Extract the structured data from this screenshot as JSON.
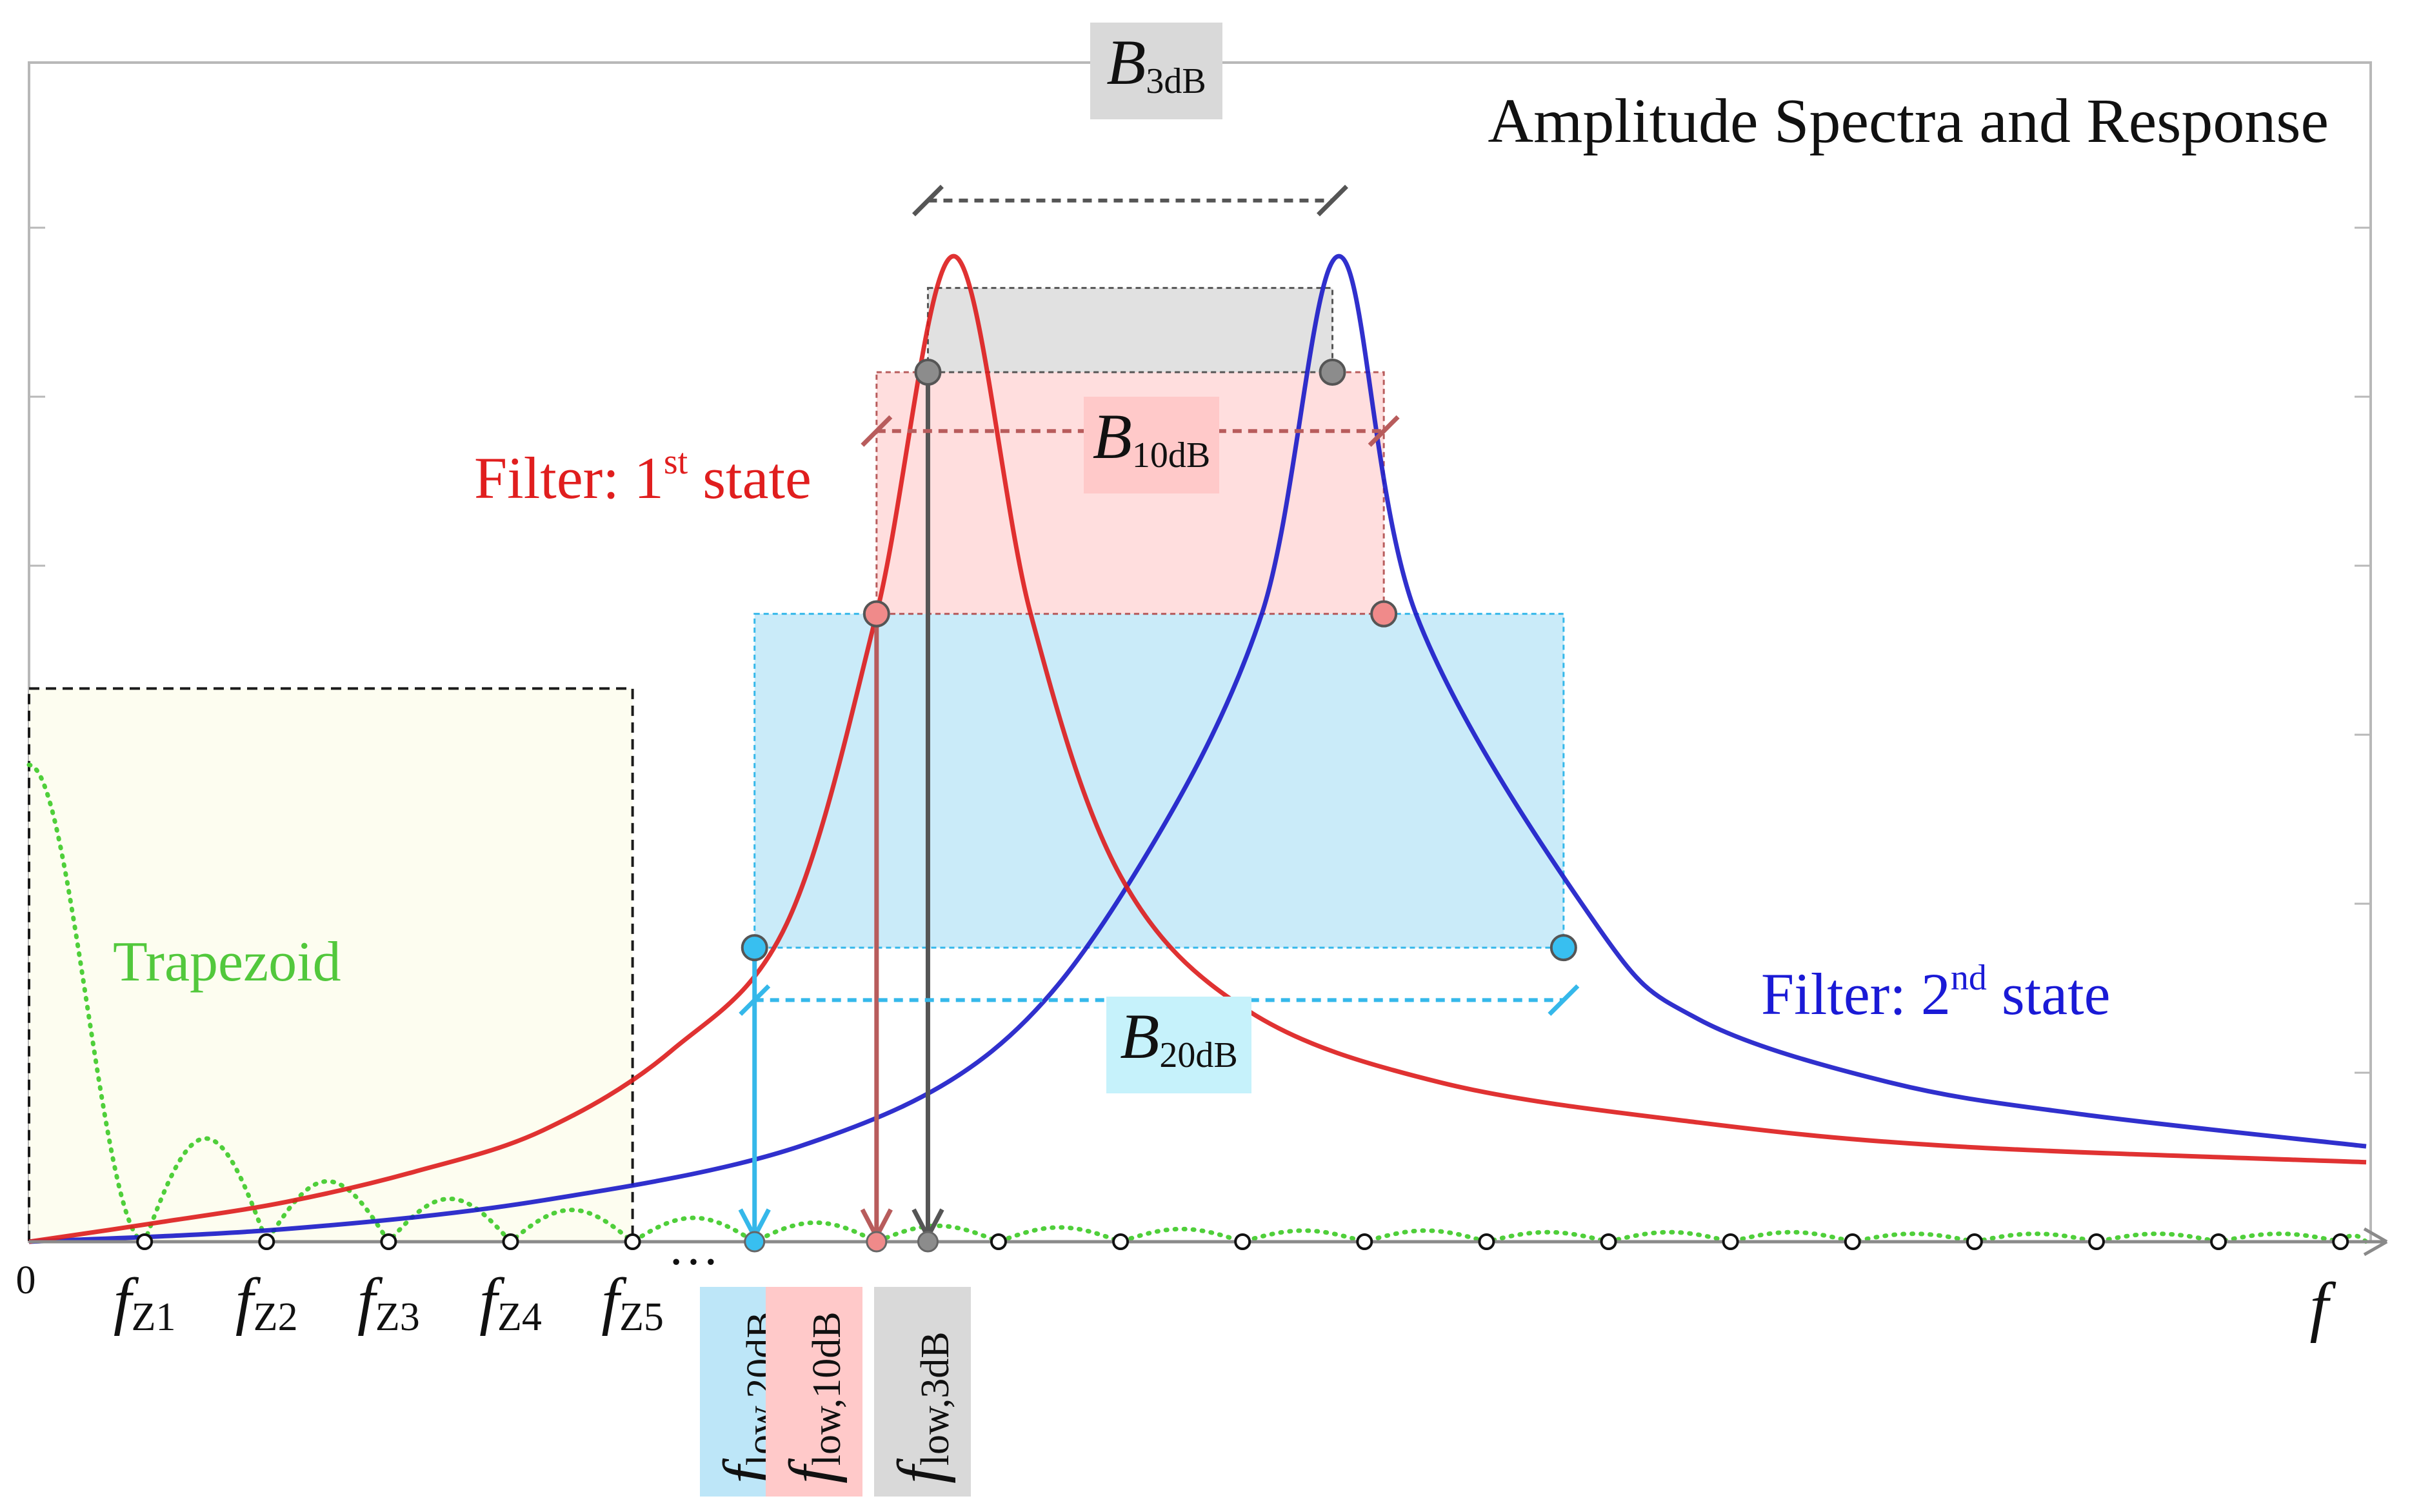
{
  "chart_data": {
    "type": "line",
    "title": "Amplitude Spectra and Response",
    "xlabel": "f",
    "ylabel": "",
    "origin_label": "0",
    "xlim": [
      0,
      18.2
    ],
    "ylim": [
      0,
      7.0
    ],
    "grid": false,
    "series": [
      {
        "name": "Filter: 1st state",
        "label_main": "Filter: 1",
        "label_sup": "st",
        "label_tail": " state",
        "color": "#dd1c1c",
        "center": 7.2,
        "peak": 6.2,
        "half_width": 0.66,
        "points": [
          [
            0,
            0
          ],
          [
            1,
            0.12
          ],
          [
            2,
            0.25
          ],
          [
            3,
            0.44
          ],
          [
            4,
            0.7
          ],
          [
            5,
            1.2
          ],
          [
            5.9,
            2.0
          ],
          [
            6.6,
            3.95
          ],
          [
            7.2,
            6.2
          ],
          [
            7.8,
            3.95
          ],
          [
            8.5,
            2.3
          ],
          [
            9.5,
            1.45
          ],
          [
            11,
            1.0
          ],
          [
            13,
            0.75
          ],
          [
            15,
            0.6
          ],
          [
            18.2,
            0.5
          ]
        ]
      },
      {
        "name": "Filter: 2nd state",
        "label_main": "Filter: 2",
        "label_sup": "nd",
        "label_tail": " state",
        "color": "#1a1ac8",
        "center": 10.2,
        "peak": 6.2,
        "half_width": 0.66,
        "points": [
          [
            0,
            0
          ],
          [
            2,
            0.08
          ],
          [
            4,
            0.26
          ],
          [
            6,
            0.6
          ],
          [
            7.5,
            1.2
          ],
          [
            8.6,
            2.3
          ],
          [
            9.6,
            3.95
          ],
          [
            10.2,
            6.2
          ],
          [
            10.8,
            3.95
          ],
          [
            12.2,
            2.0
          ],
          [
            13,
            1.4
          ],
          [
            14.5,
            1.0
          ],
          [
            16,
            0.8
          ],
          [
            18.2,
            0.6
          ]
        ]
      },
      {
        "name": "Trapezoid",
        "label": "Trapezoid",
        "color": "#4fcf3a",
        "style": "dotted",
        "zeros": [
          0.9,
          1.85,
          2.8,
          3.75,
          4.7,
          5.65,
          6.6,
          7.55,
          8.5,
          9.45,
          10.4,
          11.35,
          12.3,
          13.25,
          14.2,
          15.15,
          16.1,
          17.05,
          18.0
        ],
        "lobe_peaks": [
          3.0,
          0.65,
          0.38,
          0.27,
          0.2,
          0.15,
          0.12,
          0.1,
          0.09,
          0.08,
          0.07,
          0.07,
          0.06,
          0.06,
          0.06,
          0.05,
          0.05,
          0.05,
          0.05
        ]
      }
    ],
    "bandwidths": [
      {
        "name": "B3dB",
        "main": "B",
        "sub": "3dB",
        "level": 5.47,
        "f_low": 7.0,
        "f_high": 10.15,
        "fill": "#d9d9d9",
        "line": "#555555",
        "marker": "#8c8c8c"
      },
      {
        "name": "B10dB",
        "main": "B",
        "sub": "10dB",
        "level": 3.95,
        "f_low": 6.6,
        "f_high": 10.55,
        "fill": "#ffd6d6",
        "line": "#b85c5c",
        "marker": "#f08a8a"
      },
      {
        "name": "B20dB",
        "main": "B",
        "sub": "20dB",
        "level": 1.85,
        "f_low": 5.65,
        "f_high": 11.95,
        "fill": "#bde6f8",
        "line": "#35b8ea",
        "marker": "#38bff0"
      }
    ],
    "trapezoid_box": {
      "x_end": 4.7,
      "y_top": 3.48,
      "fill": "#fdfdf0"
    },
    "x_ticks": [
      {
        "x": 0.9,
        "main": "f",
        "sub": "Z1"
      },
      {
        "x": 1.85,
        "main": "f",
        "sub": "Z2"
      },
      {
        "x": 2.8,
        "main": "f",
        "sub": "Z3"
      },
      {
        "x": 3.75,
        "main": "f",
        "sub": "Z4"
      },
      {
        "x": 4.7,
        "main": "f",
        "sub": "Z5"
      }
    ],
    "ellipsis": "…",
    "f_low_labels": [
      {
        "x": 5.65,
        "main": "f",
        "sub": "low,20dB",
        "fill": "#bde6f8"
      },
      {
        "x": 6.6,
        "main": "f",
        "sub": "low,10dB",
        "fill": "#ffc9c9"
      },
      {
        "x": 7.0,
        "main": "f",
        "sub": "low,3dB",
        "fill": "#d9d9d9"
      }
    ]
  }
}
